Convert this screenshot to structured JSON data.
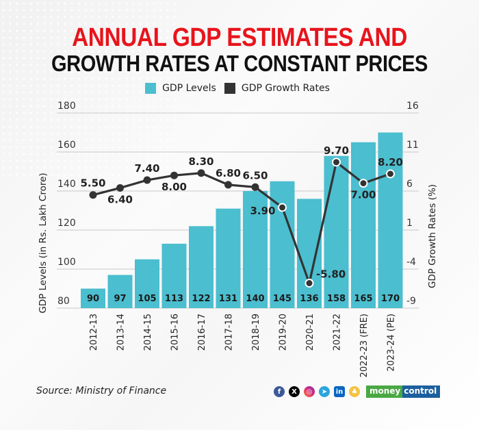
{
  "title": {
    "line1": "ANNUAL GDP ESTIMATES AND",
    "line2": "GROWTH RATES AT CONSTANT PRICES"
  },
  "colors": {
    "title_red": "#e8141c",
    "bar": "#4bbecf",
    "line": "#333333",
    "text": "#222222"
  },
  "legend": [
    {
      "label": "GDP Levels",
      "color": "#4bbecf"
    },
    {
      "label": "GDP Growth Rates",
      "color": "#333333"
    }
  ],
  "chart_data": {
    "type": "bar+line",
    "title": "Annual GDP Estimates and Growth Rates at Constant Prices",
    "categories": [
      "2012-13",
      "2013-14",
      "2014-15",
      "2015-16",
      "2016-17",
      "2017-18",
      "2018-19",
      "2019-20",
      "2020-21",
      "2021-22",
      "2022-23 (FRE)",
      "2023-24 (PE)"
    ],
    "series": [
      {
        "name": "GDP Levels",
        "type": "bar",
        "axis": "left",
        "values": [
          90,
          97,
          105,
          113,
          122,
          131,
          140,
          145,
          136,
          158,
          165,
          170
        ],
        "labels": [
          "90",
          "97",
          "105",
          "113",
          "122",
          "131",
          "140",
          "145",
          "136",
          "158",
          "165",
          "170"
        ]
      },
      {
        "name": "GDP Growth Rates",
        "type": "line",
        "axis": "right",
        "values": [
          5.5,
          6.4,
          7.4,
          8.0,
          8.3,
          6.8,
          6.5,
          3.9,
          -5.8,
          9.7,
          7.0,
          8.2
        ],
        "labels": [
          "5.50",
          "6.40",
          "7.40",
          "8.00",
          "8.30",
          "6.80",
          "6.50",
          "3.90",
          "-5.80",
          "9.70",
          "7.00",
          "8.20"
        ],
        "label_pos": [
          "above",
          "below",
          "above",
          "below",
          "above",
          "above",
          "above",
          "left",
          "right",
          "above",
          "below",
          "above"
        ]
      }
    ],
    "ylabel": "GDP Levels (in Rs. Lakh Crore)",
    "ylim": [
      80,
      180
    ],
    "yticks": [
      "80",
      "100",
      "120",
      "140",
      "160",
      "180"
    ],
    "y2label": "GDP Growth Rates (%)",
    "y2lim": [
      -9,
      16
    ],
    "y2ticks": [
      "-9",
      "-4",
      "1",
      "6",
      "11",
      "16"
    ],
    "grid": true,
    "legend_position": "top-center"
  },
  "footer": {
    "source": "Source: Ministry of Finance",
    "social_icons": [
      "facebook-icon",
      "x-icon",
      "instagram-icon",
      "telegram-icon",
      "linkedin-icon",
      "snapchat-icon"
    ],
    "brand_part1": "money",
    "brand_part2": "control"
  }
}
